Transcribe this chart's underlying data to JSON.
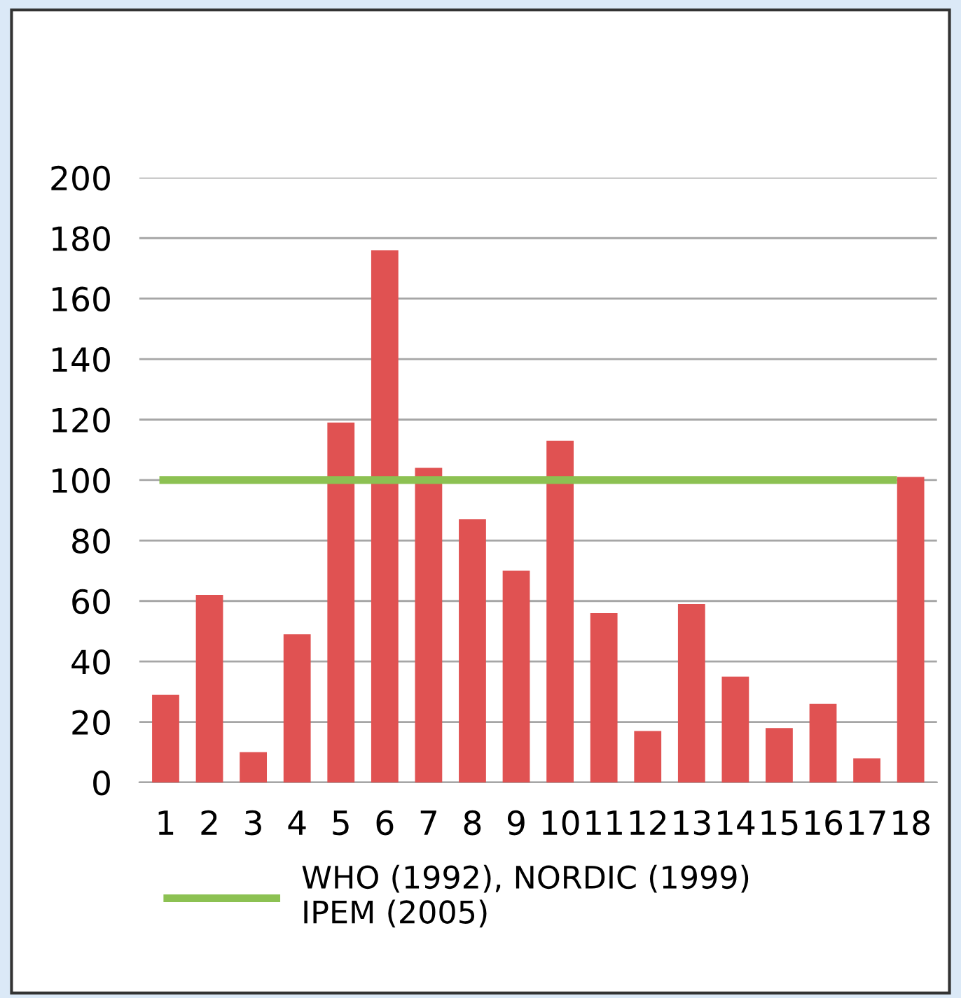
{
  "chart_data": {
    "type": "bar",
    "categories": [
      "1",
      "2",
      "3",
      "4",
      "5",
      "6",
      "7",
      "8",
      "9",
      "10",
      "11",
      "12",
      "13",
      "14",
      "15",
      "16",
      "17",
      "18"
    ],
    "values": [
      29,
      62,
      10,
      49,
      119,
      176,
      104,
      87,
      70,
      113,
      56,
      17,
      59,
      35,
      18,
      26,
      8,
      101
    ],
    "color": "#e05252",
    "ylim": [
      0,
      200
    ],
    "yticks": [
      0,
      20,
      40,
      60,
      80,
      100,
      120,
      140,
      160,
      180,
      200
    ],
    "grid": "y",
    "ref_lines": [
      {
        "axis": "y",
        "value": 100,
        "label": "WHO (1992), NORDIC (1999)\nIPEM (2005)",
        "color": "#8cc152"
      }
    ],
    "legend": "bottom"
  }
}
